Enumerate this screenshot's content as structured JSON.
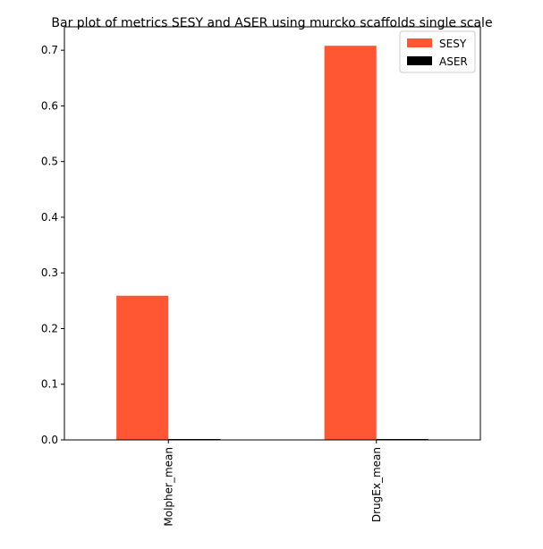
{
  "chart_data": {
    "type": "bar",
    "title": "Bar plot of metrics SESY and ASER using murcko scaffolds single scale",
    "categories": [
      "Molpher_mean",
      "DrugEx_mean"
    ],
    "series": [
      {
        "name": "SESY",
        "color": "#ff5733",
        "values": [
          0.259,
          0.708
        ]
      },
      {
        "name": "ASER",
        "color": "#000000",
        "values": [
          0.001,
          0.001
        ]
      }
    ],
    "xlabel": "",
    "ylabel": "",
    "ylim": [
      0,
      0.742
    ],
    "yticks": [
      0.0,
      0.1,
      0.2,
      0.3,
      0.4,
      0.5,
      0.6,
      0.7
    ],
    "ytick_labels": [
      "0.0",
      "0.1",
      "0.2",
      "0.3",
      "0.4",
      "0.5",
      "0.6",
      "0.7"
    ],
    "grid": false,
    "legend_position": "top-right"
  }
}
